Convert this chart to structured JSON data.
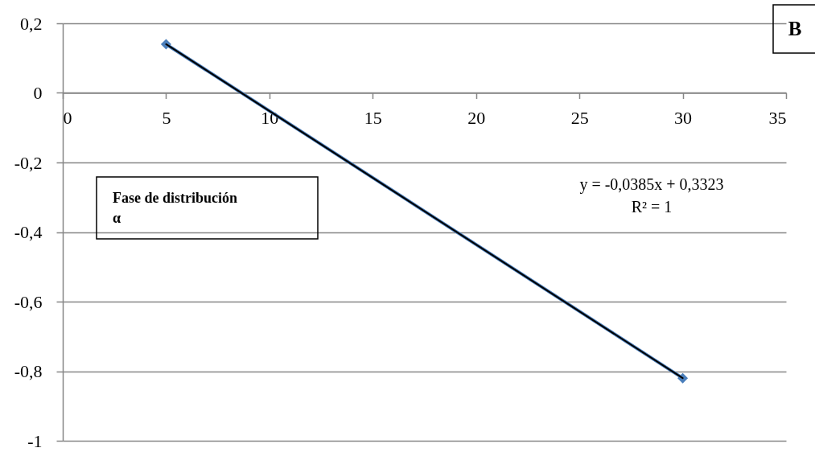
{
  "chart_data": {
    "type": "line",
    "x": [
      5,
      30
    ],
    "series": [
      {
        "color": "#4a7ebb",
        "values": [
          0.14,
          -0.82
        ],
        "marker": "diamond"
      },
      {
        "type": "line",
        "color": "#000000",
        "values": [
          0.14,
          -0.82
        ],
        "marker": "none"
      }
    ],
    "xlim": [
      0,
      35
    ],
    "xticks": [
      0,
      5,
      10,
      15,
      20,
      25,
      30,
      35
    ],
    "ylim": [
      -1,
      0.2
    ],
    "yticks": [
      {
        "value": -1,
        "label": "-1"
      },
      {
        "value": -0.8,
        "label": "-0,8"
      },
      {
        "value": -0.6,
        "label": "-0,6"
      },
      {
        "value": -0.4,
        "label": "-0,4"
      },
      {
        "value": -0.2,
        "label": "-0,2"
      },
      {
        "value": 0,
        "label": "0"
      },
      {
        "value": 0.2,
        "label": "0,2"
      }
    ],
    "grid": "y",
    "annotations": [
      "B",
      "Fase de distribución\nα",
      "y = -0,0385x + 0,3323\nR² = 1"
    ]
  }
}
